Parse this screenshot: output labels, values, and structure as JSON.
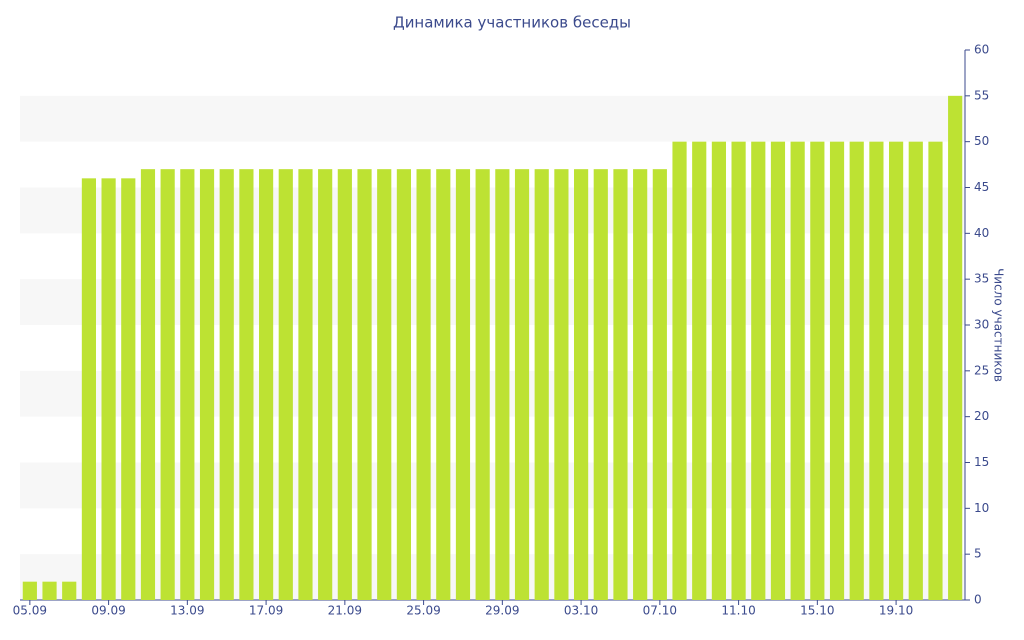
{
  "chart_data": {
    "type": "bar",
    "title": "Динамика участников беседы",
    "y_axis_label": "Число участников",
    "categories": [
      "05.09",
      null,
      null,
      null,
      "09.09",
      null,
      null,
      null,
      "13.09",
      null,
      null,
      null,
      "17.09",
      null,
      null,
      null,
      "21.09",
      null,
      null,
      null,
      "25.09",
      null,
      null,
      null,
      "29.09",
      null,
      null,
      null,
      "03.10",
      null,
      null,
      null,
      "07.10",
      null,
      null,
      null,
      "11.10",
      null,
      null,
      null,
      "15.10",
      null,
      null,
      null,
      "19.10",
      null,
      null,
      null
    ],
    "values": [
      2,
      2,
      2,
      46,
      46,
      46,
      47,
      47,
      47,
      47,
      47,
      47,
      47,
      47,
      47,
      47,
      47,
      47,
      47,
      47,
      47,
      47,
      47,
      47,
      47,
      47,
      47,
      47,
      47,
      47,
      47,
      47,
      47,
      50,
      50,
      50,
      50,
      50,
      50,
      50,
      50,
      50,
      50,
      50,
      50,
      50,
      50,
      55
    ],
    "color": "#bde233",
    "ylim": [
      0,
      60
    ],
    "yticks": [
      0,
      5,
      10,
      15,
      20,
      25,
      30,
      35,
      40,
      45,
      50,
      55,
      60
    ],
    "y_axis_side": "right",
    "grid": "bands"
  }
}
